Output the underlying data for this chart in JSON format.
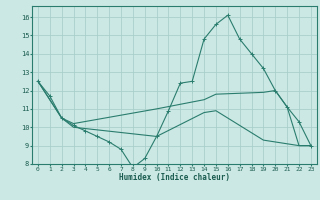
{
  "xlabel": "Humidex (Indice chaleur)",
  "bg_color": "#cce8e4",
  "line_color": "#2a7d6e",
  "grid_color": "#aacfca",
  "xlim": [
    -0.5,
    23.5
  ],
  "ylim": [
    8,
    16.6
  ],
  "yticks": [
    8,
    9,
    10,
    11,
    12,
    13,
    14,
    15,
    16
  ],
  "xticks": [
    0,
    1,
    2,
    3,
    4,
    5,
    6,
    7,
    8,
    9,
    10,
    11,
    12,
    13,
    14,
    15,
    16,
    17,
    18,
    19,
    20,
    21,
    22,
    23
  ],
  "line1_x": [
    0,
    1,
    2,
    3,
    4,
    5,
    6,
    7,
    8,
    9,
    10,
    11,
    12,
    13,
    14,
    15,
    16,
    17,
    18,
    19,
    20,
    21,
    22,
    23
  ],
  "line1_y": [
    12.5,
    11.7,
    10.5,
    10.1,
    9.8,
    9.5,
    9.2,
    8.8,
    7.8,
    8.3,
    9.5,
    10.9,
    12.4,
    12.5,
    14.8,
    15.6,
    16.1,
    14.8,
    14.0,
    13.2,
    12.0,
    11.1,
    10.3,
    9.0
  ],
  "line2_x": [
    0,
    2,
    3,
    10,
    14,
    15,
    19,
    20,
    21,
    22,
    23
  ],
  "line2_y": [
    12.5,
    10.5,
    10.2,
    11.0,
    11.5,
    11.8,
    11.9,
    12.0,
    11.1,
    9.0,
    9.0
  ],
  "line3_x": [
    0,
    2,
    3,
    10,
    14,
    15,
    19,
    20,
    21,
    22,
    23
  ],
  "line3_y": [
    12.5,
    10.5,
    10.0,
    9.5,
    10.8,
    10.9,
    9.3,
    9.2,
    9.1,
    9.0,
    9.0
  ]
}
